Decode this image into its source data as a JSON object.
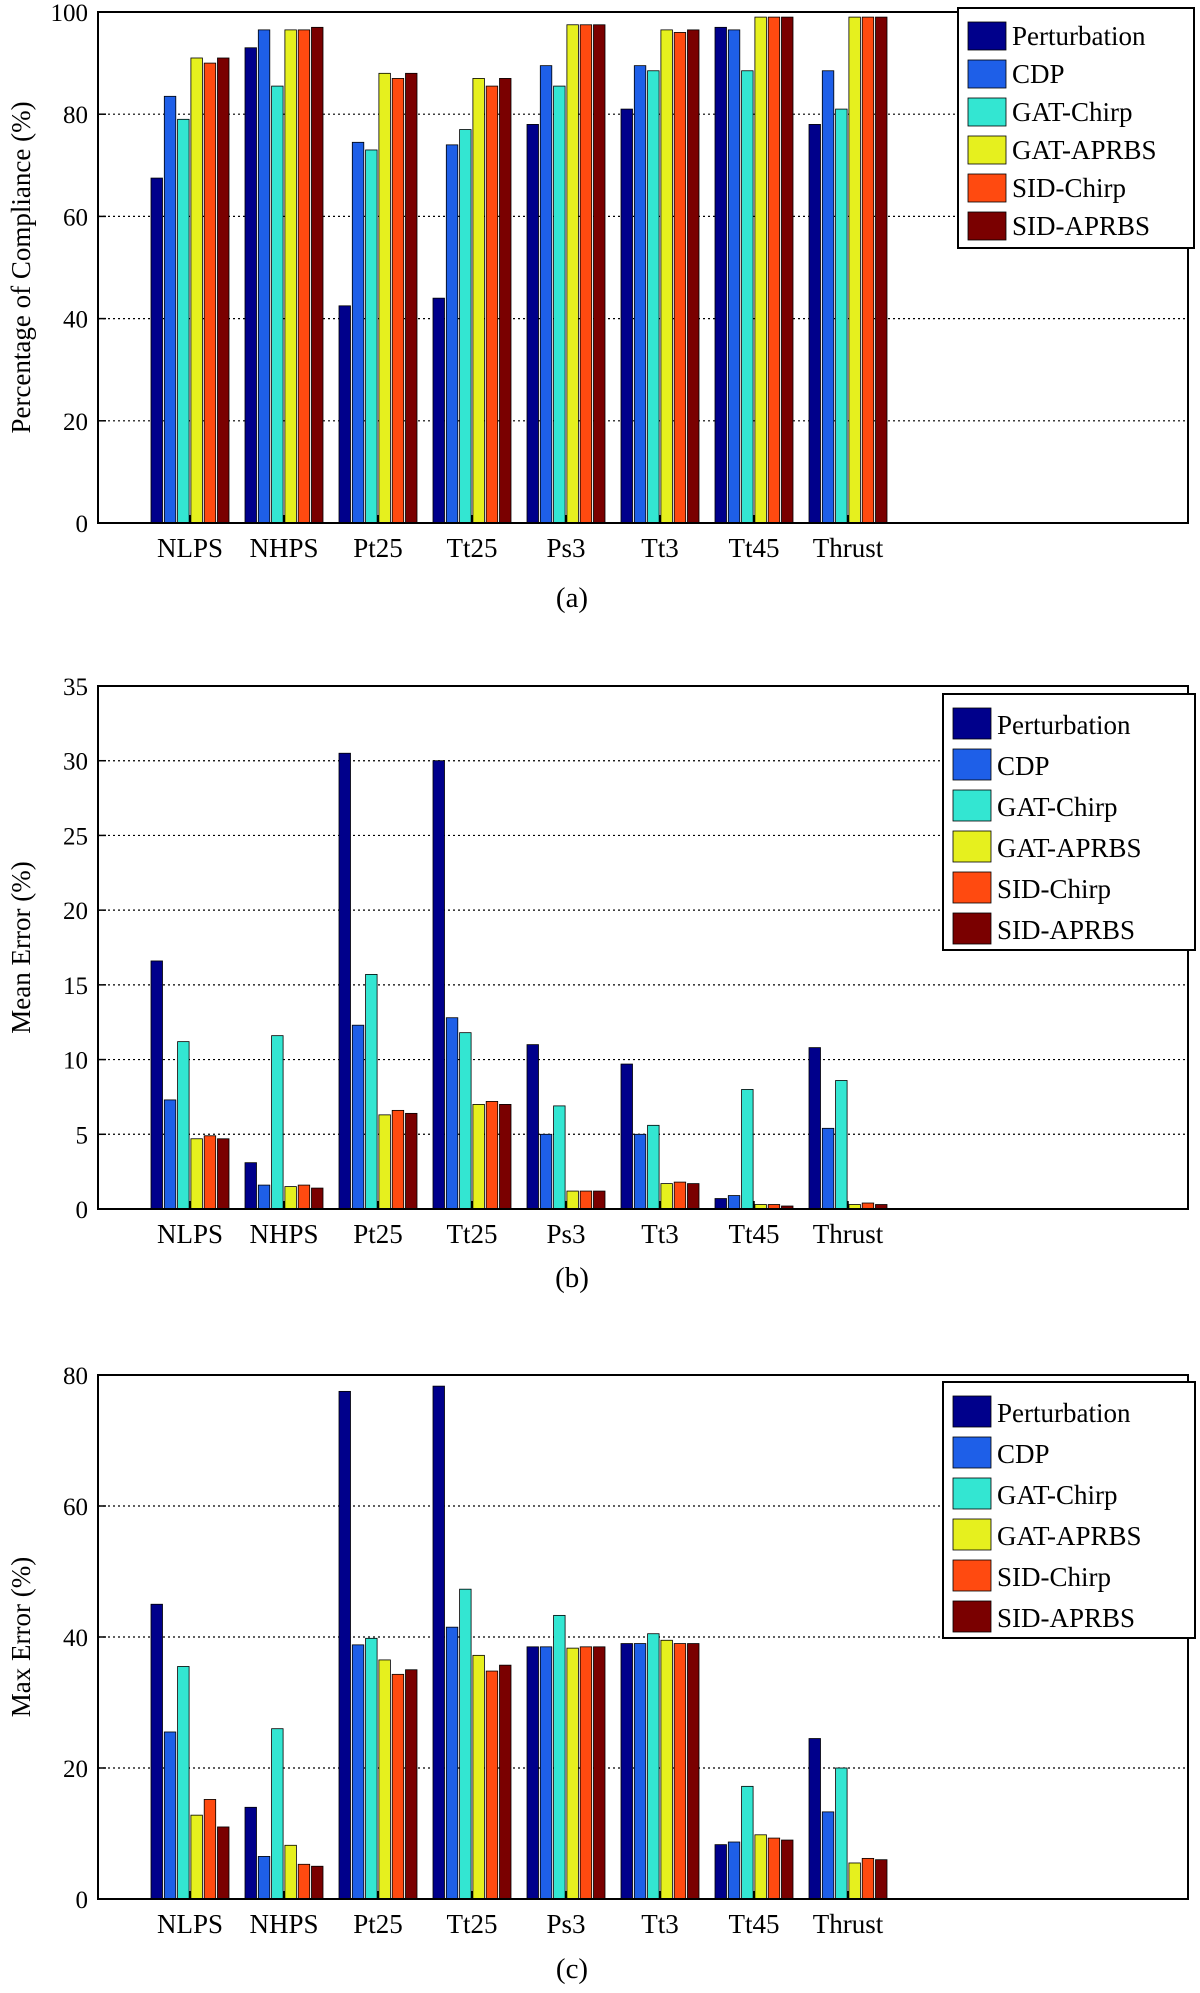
{
  "chart_data": [
    {
      "type": "bar",
      "panel_label": "(a)",
      "categories": [
        "NLPS",
        "NHPS",
        "Pt25",
        "Tt25",
        "Ps3",
        "Tt3",
        "Tt45",
        "Thrust"
      ],
      "ylabel": "Percentage of Compliance (%)",
      "xlabel": "",
      "ylim": [
        0,
        100
      ],
      "yticks": [
        0,
        20,
        40,
        60,
        80,
        100
      ],
      "grid": "horizontal dotted",
      "legend_position": "top-right",
      "series": [
        {
          "name": "Perturbation",
          "values": [
            67.5,
            93,
            42.5,
            44,
            78,
            81,
            97,
            78
          ]
        },
        {
          "name": "CDP",
          "values": [
            83.5,
            96.5,
            74.5,
            74,
            89.5,
            89.5,
            96.5,
            88.5
          ]
        },
        {
          "name": "GAT-Chirp",
          "values": [
            79,
            85.5,
            73,
            77,
            85.5,
            88.5,
            88.5,
            81
          ]
        },
        {
          "name": "GAT-APRBS",
          "values": [
            91,
            96.5,
            88,
            87,
            97.5,
            96.5,
            99,
            99
          ]
        },
        {
          "name": "SID-Chirp",
          "values": [
            90,
            96.5,
            87,
            85.5,
            97.5,
            96,
            99,
            99
          ]
        },
        {
          "name": "SID-APRBS",
          "values": [
            91,
            97,
            88,
            87,
            97.5,
            96.5,
            99,
            99
          ]
        }
      ]
    },
    {
      "type": "bar",
      "panel_label": "(b)",
      "categories": [
        "NLPS",
        "NHPS",
        "Pt25",
        "Tt25",
        "Ps3",
        "Tt3",
        "Tt45",
        "Thrust"
      ],
      "ylabel": "Mean Error (%)",
      "xlabel": "",
      "ylim": [
        0,
        35
      ],
      "yticks": [
        0,
        5,
        10,
        15,
        20,
        25,
        30,
        35
      ],
      "grid": "horizontal dotted",
      "legend_position": "top-right",
      "series": [
        {
          "name": "Perturbation",
          "values": [
            16.6,
            3.1,
            30.5,
            30.0,
            11.0,
            9.7,
            0.7,
            10.8
          ]
        },
        {
          "name": "CDP",
          "values": [
            7.3,
            1.6,
            12.3,
            12.8,
            5.0,
            5.0,
            0.9,
            5.4
          ]
        },
        {
          "name": "GAT-Chirp",
          "values": [
            11.2,
            11.6,
            15.7,
            11.8,
            6.9,
            5.6,
            8.0,
            8.6
          ]
        },
        {
          "name": "GAT-APRBS",
          "values": [
            4.7,
            1.5,
            6.3,
            7.0,
            1.2,
            1.7,
            0.3,
            0.3
          ]
        },
        {
          "name": "SID-Chirp",
          "values": [
            4.9,
            1.6,
            6.6,
            7.2,
            1.2,
            1.8,
            0.3,
            0.4
          ]
        },
        {
          "name": "SID-APRBS",
          "values": [
            4.7,
            1.4,
            6.4,
            7.0,
            1.2,
            1.7,
            0.2,
            0.3
          ]
        }
      ]
    },
    {
      "type": "bar",
      "panel_label": "(c)",
      "categories": [
        "NLPS",
        "NHPS",
        "Pt25",
        "Tt25",
        "Ps3",
        "Tt3",
        "Tt45",
        "Thrust"
      ],
      "ylabel": "Max Error (%)",
      "xlabel": "",
      "ylim": [
        0,
        80
      ],
      "yticks": [
        0,
        20,
        40,
        60,
        80
      ],
      "grid": "horizontal dotted",
      "legend_position": "top-right",
      "series": [
        {
          "name": "Perturbation",
          "values": [
            45,
            14,
            77.5,
            78.3,
            38.5,
            39,
            8.3,
            24.5
          ]
        },
        {
          "name": "CDP",
          "values": [
            25.5,
            6.5,
            38.8,
            41.5,
            38.5,
            39,
            8.7,
            13.3
          ]
        },
        {
          "name": "GAT-Chirp",
          "values": [
            35.5,
            26,
            39.8,
            47.3,
            43.3,
            40.5,
            17.2,
            20
          ]
        },
        {
          "name": "GAT-APRBS",
          "values": [
            12.8,
            8.2,
            36.5,
            37.2,
            38.3,
            39.5,
            9.8,
            5.5
          ]
        },
        {
          "name": "SID-Chirp",
          "values": [
            15.2,
            5.3,
            34.3,
            34.8,
            38.5,
            39,
            9.3,
            6.2
          ]
        },
        {
          "name": "SID-APRBS",
          "values": [
            11,
            5,
            35,
            35.7,
            38.5,
            39,
            9,
            6
          ]
        }
      ]
    }
  ],
  "series_colors": [
    "#00008B",
    "#1E5FE8",
    "#33E6D2",
    "#E6F01E",
    "#FF4A10",
    "#7A0000"
  ]
}
